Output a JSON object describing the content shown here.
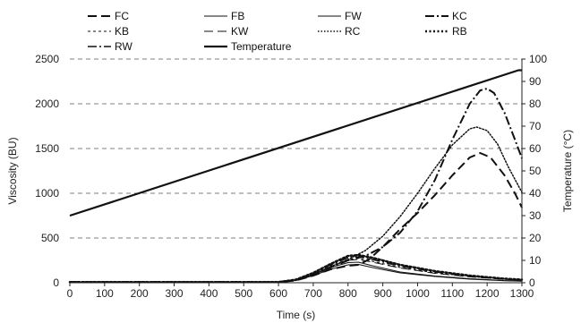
{
  "chart_data": {
    "type": "line",
    "xlabel": "Time (s)",
    "ylabel": "Viscosity (BU)",
    "y2label": "Temperature (°C)",
    "xlim": [
      0,
      1300
    ],
    "ylim": [
      0,
      2500
    ],
    "y2lim": [
      0,
      100
    ],
    "xticks": [
      "0",
      "100",
      "200",
      "300",
      "400",
      "500",
      "600",
      "700",
      "800",
      "900",
      "1000",
      "1100",
      "1200",
      "1300"
    ],
    "yticks": [
      "0",
      "500",
      "1000",
      "1500",
      "2000",
      "2500"
    ],
    "y2ticks": [
      "0",
      "10",
      "20",
      "30",
      "40",
      "50",
      "60",
      "70",
      "80",
      "90",
      "100"
    ],
    "grid": "horizontal dashed",
    "legend_position": "top",
    "series": [
      {
        "name": "FC",
        "axis": "left",
        "style": "dash-long",
        "width": 2.0,
        "x": [
          0,
          600,
          650,
          700,
          750,
          800,
          830,
          860,
          900,
          950,
          1000,
          1050,
          1100,
          1150,
          1180,
          1210,
          1250,
          1280,
          1300
        ],
        "y": [
          8,
          8,
          25,
          80,
          150,
          190,
          200,
          260,
          400,
          600,
          780,
          980,
          1200,
          1400,
          1450,
          1400,
          1200,
          1000,
          840
        ]
      },
      {
        "name": "FB",
        "axis": "left",
        "style": "solid",
        "width": 1.0,
        "x": [
          0,
          600,
          650,
          700,
          750,
          800,
          830,
          870,
          950,
          1050,
          1150,
          1250,
          1300
        ],
        "y": [
          8,
          8,
          30,
          90,
          170,
          225,
          230,
          190,
          120,
          75,
          45,
          25,
          20
        ]
      },
      {
        "name": "FW",
        "axis": "left",
        "style": "solid",
        "width": 1.0,
        "x": [
          0,
          600,
          650,
          700,
          750,
          800,
          830,
          870,
          950,
          1050,
          1150,
          1250,
          1300
        ],
        "y": [
          8,
          8,
          25,
          80,
          150,
          200,
          205,
          170,
          110,
          70,
          40,
          22,
          18
        ]
      },
      {
        "name": "KC",
        "axis": "left",
        "style": "dash-dot",
        "width": 2.0,
        "x": [
          0,
          600,
          650,
          700,
          750,
          800,
          850,
          900,
          950,
          1000,
          1050,
          1100,
          1150,
          1180,
          1200,
          1220,
          1250,
          1280,
          1300
        ],
        "y": [
          8,
          8,
          30,
          90,
          170,
          250,
          300,
          400,
          560,
          800,
          1150,
          1600,
          2000,
          2150,
          2170,
          2120,
          1900,
          1600,
          1390
        ]
      },
      {
        "name": "KB",
        "axis": "left",
        "style": "dash-short",
        "width": 1.0,
        "x": [
          0,
          600,
          650,
          700,
          750,
          800,
          830,
          870,
          950,
          1050,
          1150,
          1250,
          1300
        ],
        "y": [
          8,
          8,
          30,
          100,
          190,
          260,
          270,
          240,
          170,
          110,
          70,
          40,
          30
        ]
      },
      {
        "name": "KW",
        "axis": "left",
        "style": "dash-long",
        "width": 1.0,
        "x": [
          0,
          600,
          650,
          700,
          750,
          800,
          830,
          870,
          950,
          1050,
          1150,
          1250,
          1300
        ],
        "y": [
          8,
          8,
          30,
          95,
          180,
          250,
          260,
          230,
          165,
          105,
          65,
          38,
          28
        ]
      },
      {
        "name": "RC",
        "axis": "left",
        "style": "dotted",
        "width": 1.5,
        "x": [
          0,
          600,
          650,
          700,
          750,
          800,
          850,
          900,
          950,
          1000,
          1050,
          1100,
          1150,
          1170,
          1200,
          1230,
          1260,
          1300
        ],
        "y": [
          8,
          8,
          30,
          90,
          180,
          260,
          360,
          520,
          740,
          1000,
          1280,
          1540,
          1720,
          1740,
          1700,
          1550,
          1300,
          1010
        ]
      },
      {
        "name": "RB",
        "axis": "left",
        "style": "dotted-bold",
        "width": 2.5,
        "x": [
          0,
          600,
          650,
          700,
          750,
          800,
          830,
          870,
          950,
          1050,
          1150,
          1250,
          1300
        ],
        "y": [
          8,
          8,
          35,
          110,
          210,
          300,
          310,
          280,
          200,
          130,
          80,
          45,
          35
        ]
      },
      {
        "name": "RW",
        "axis": "left",
        "style": "dash-dot",
        "width": 1.5,
        "x": [
          0,
          600,
          650,
          700,
          750,
          800,
          830,
          870,
          950,
          1050,
          1150,
          1250,
          1300
        ],
        "y": [
          8,
          8,
          35,
          105,
          200,
          280,
          290,
          260,
          185,
          120,
          75,
          42,
          32
        ]
      },
      {
        "name": "Temperature",
        "axis": "right",
        "style": "solid",
        "width": 2.2,
        "x": [
          0,
          1290,
          1300
        ],
        "y": [
          30,
          95,
          95
        ]
      }
    ]
  }
}
